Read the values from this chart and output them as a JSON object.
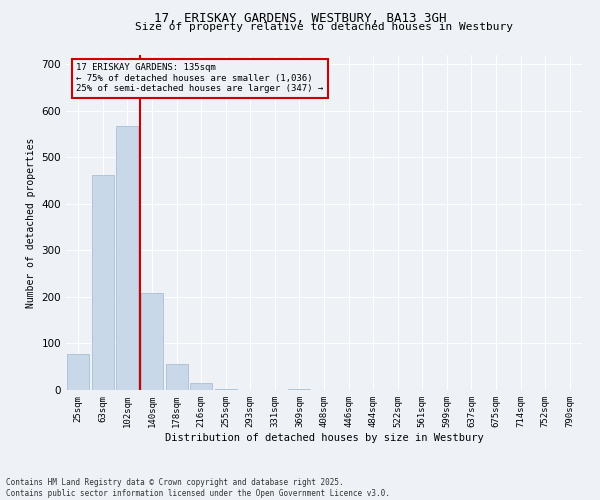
{
  "title": "17, ERISKAY GARDENS, WESTBURY, BA13 3GH",
  "subtitle": "Size of property relative to detached houses in Westbury",
  "xlabel": "Distribution of detached houses by size in Westbury",
  "ylabel": "Number of detached properties",
  "categories": [
    "25sqm",
    "63sqm",
    "102sqm",
    "140sqm",
    "178sqm",
    "216sqm",
    "255sqm",
    "293sqm",
    "331sqm",
    "369sqm",
    "408sqm",
    "446sqm",
    "484sqm",
    "522sqm",
    "561sqm",
    "599sqm",
    "637sqm",
    "675sqm",
    "714sqm",
    "752sqm",
    "790sqm"
  ],
  "values": [
    78,
    462,
    568,
    208,
    55,
    14,
    3,
    0,
    0,
    3,
    0,
    0,
    0,
    0,
    0,
    0,
    0,
    0,
    0,
    0,
    0
  ],
  "bar_color": "#c8d8e8",
  "bar_edge_color": "#a0b8d0",
  "vline_color": "#cc0000",
  "annotation_title": "17 ERISKAY GARDENS: 135sqm",
  "annotation_line1": "← 75% of detached houses are smaller (1,036)",
  "annotation_line2": "25% of semi-detached houses are larger (347) →",
  "annotation_box_color": "#cc0000",
  "ylim": [
    0,
    720
  ],
  "yticks": [
    0,
    100,
    200,
    300,
    400,
    500,
    600,
    700
  ],
  "background_color": "#eef2f7",
  "grid_color": "#ffffff",
  "footer_line1": "Contains HM Land Registry data © Crown copyright and database right 2025.",
  "footer_line2": "Contains public sector information licensed under the Open Government Licence v3.0."
}
